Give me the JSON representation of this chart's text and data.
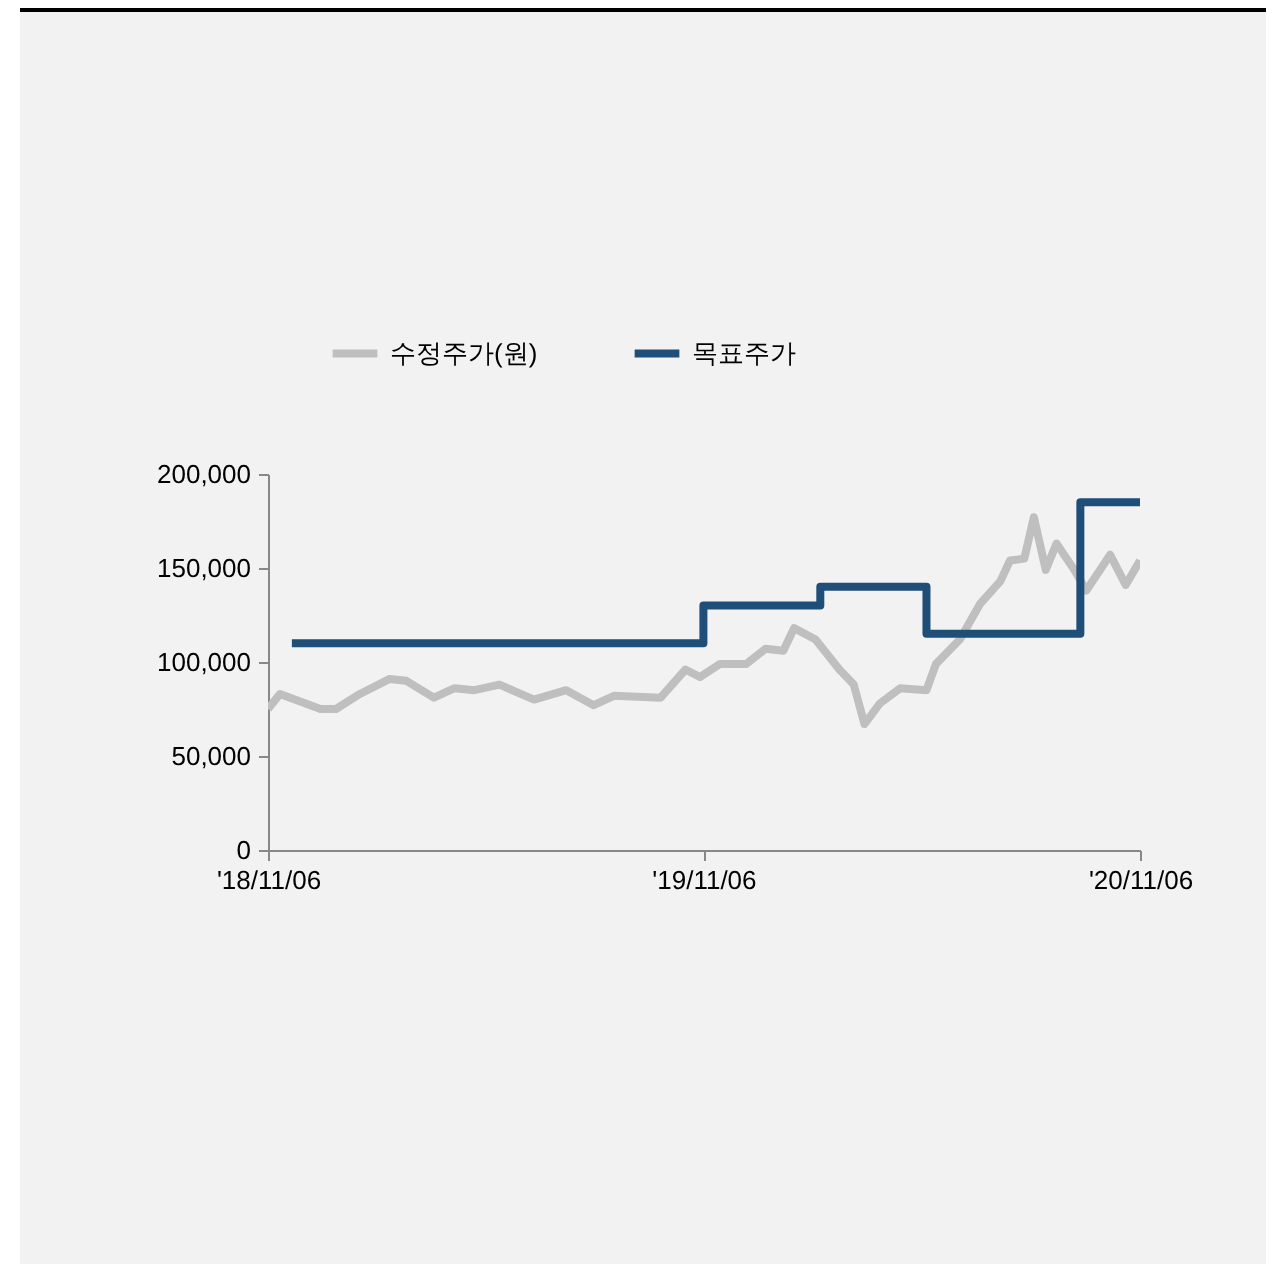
{
  "chart_data": {
    "type": "line",
    "legend": "top",
    "xlim": [
      "2018-11-06",
      "2020-11-06"
    ],
    "xticks": [
      {
        "value": "2018-11-06",
        "label": "'18/11/06"
      },
      {
        "value": "2019-11-06",
        "label": "'19/11/06"
      },
      {
        "value": "2020-11-06",
        "label": "'20/11/06"
      }
    ],
    "ylim": [
      0,
      200000
    ],
    "yticks": [
      {
        "value": 0,
        "label": "0"
      },
      {
        "value": 50000,
        "label": "50,000"
      },
      {
        "value": 100000,
        "label": "100,000"
      },
      {
        "value": 150000,
        "label": "150,000"
      },
      {
        "value": 200000,
        "label": "200,000"
      }
    ],
    "series": [
      {
        "name": "수정주가(원)",
        "color": "#bfbfbf",
        "x": [
          "2018-11-06",
          "2018-11-16",
          "2018-12-20",
          "2019-01-02",
          "2019-01-22",
          "2019-02-16",
          "2019-03-02",
          "2019-03-25",
          "2019-04-11",
          "2019-04-28",
          "2019-05-19",
          "2019-06-17",
          "2019-07-14",
          "2019-08-06",
          "2019-08-23",
          "2019-10-01",
          "2019-10-22",
          "2019-11-03",
          "2019-11-20",
          "2019-12-12",
          "2019-12-28",
          "2020-01-12",
          "2020-01-21",
          "2020-02-08",
          "2020-02-28",
          "2020-03-11",
          "2020-03-20",
          "2020-04-02",
          "2020-04-19",
          "2020-05-11",
          "2020-05-19",
          "2020-06-08",
          "2020-06-25",
          "2020-07-12",
          "2020-07-20",
          "2020-08-01",
          "2020-08-09",
          "2020-08-19",
          "2020-08-28",
          "2020-09-12",
          "2020-09-22",
          "2020-10-12",
          "2020-10-25",
          "2020-11-06"
        ],
        "values": [
          75000,
          83000,
          75000,
          75000,
          83000,
          91000,
          90000,
          81000,
          86000,
          85000,
          88000,
          80000,
          85000,
          77000,
          82000,
          81000,
          96000,
          92000,
          99000,
          99000,
          107000,
          106000,
          118000,
          112000,
          96000,
          88000,
          67000,
          78000,
          86000,
          85000,
          99000,
          112000,
          131000,
          143000,
          154000,
          155000,
          177000,
          149000,
          163000,
          149000,
          138000,
          157000,
          141000,
          154000
        ]
      },
      {
        "name": "목표주가",
        "type": "step",
        "color": "#1f4e79",
        "x": [
          "2018-11-26",
          "2019-11-06",
          "2020-02-12",
          "2020-05-11",
          "2020-09-17",
          "2020-11-06"
        ],
        "values": [
          110000,
          130000,
          140000,
          115000,
          185000,
          185000
        ]
      }
    ]
  }
}
